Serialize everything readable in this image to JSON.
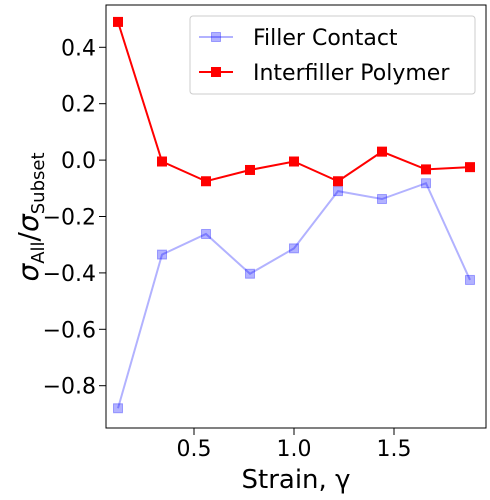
{
  "chart_data": {
    "type": "line",
    "xlabel": "Strain, γ",
    "ylabel": "σAll/σSubset",
    "ylabel_parts": {
      "sym1": "σ",
      "sub1": "All",
      "slash": "/",
      "sym2": "σ",
      "sub2": "Subset"
    },
    "xlim": [
      0.06,
      1.96
    ],
    "ylim": [
      -0.95,
      0.55
    ],
    "xticks": [
      0.5,
      1.0,
      1.5
    ],
    "xtick_labels": [
      "0.5",
      "1.0",
      "1.5"
    ],
    "yticks": [
      -0.8,
      -0.6,
      -0.4,
      -0.2,
      0.0,
      0.2,
      0.4
    ],
    "ytick_labels": [
      "−0.8",
      "−0.6",
      "−0.4",
      "−0.2",
      "0.0",
      "0.2",
      "0.4"
    ],
    "grid": false,
    "legend_position": "upper-right",
    "series": [
      {
        "name": "Filler Contact",
        "color": "#0000ff",
        "alpha": 0.3,
        "marker": "square",
        "x": [
          0.12,
          0.34,
          0.56,
          0.78,
          1.0,
          1.22,
          1.44,
          1.66,
          1.88
        ],
        "y": [
          -0.88,
          -0.335,
          -0.262,
          -0.403,
          -0.313,
          -0.11,
          -0.138,
          -0.082,
          -0.425
        ]
      },
      {
        "name": "Interfiller Polymer",
        "color": "#ff0000",
        "alpha": 1.0,
        "marker": "square",
        "x": [
          0.12,
          0.34,
          0.56,
          0.78,
          1.0,
          1.22,
          1.44,
          1.66,
          1.88
        ],
        "y": [
          0.49,
          -0.005,
          -0.075,
          -0.035,
          -0.005,
          -0.075,
          0.03,
          -0.033,
          -0.025
        ]
      }
    ]
  }
}
